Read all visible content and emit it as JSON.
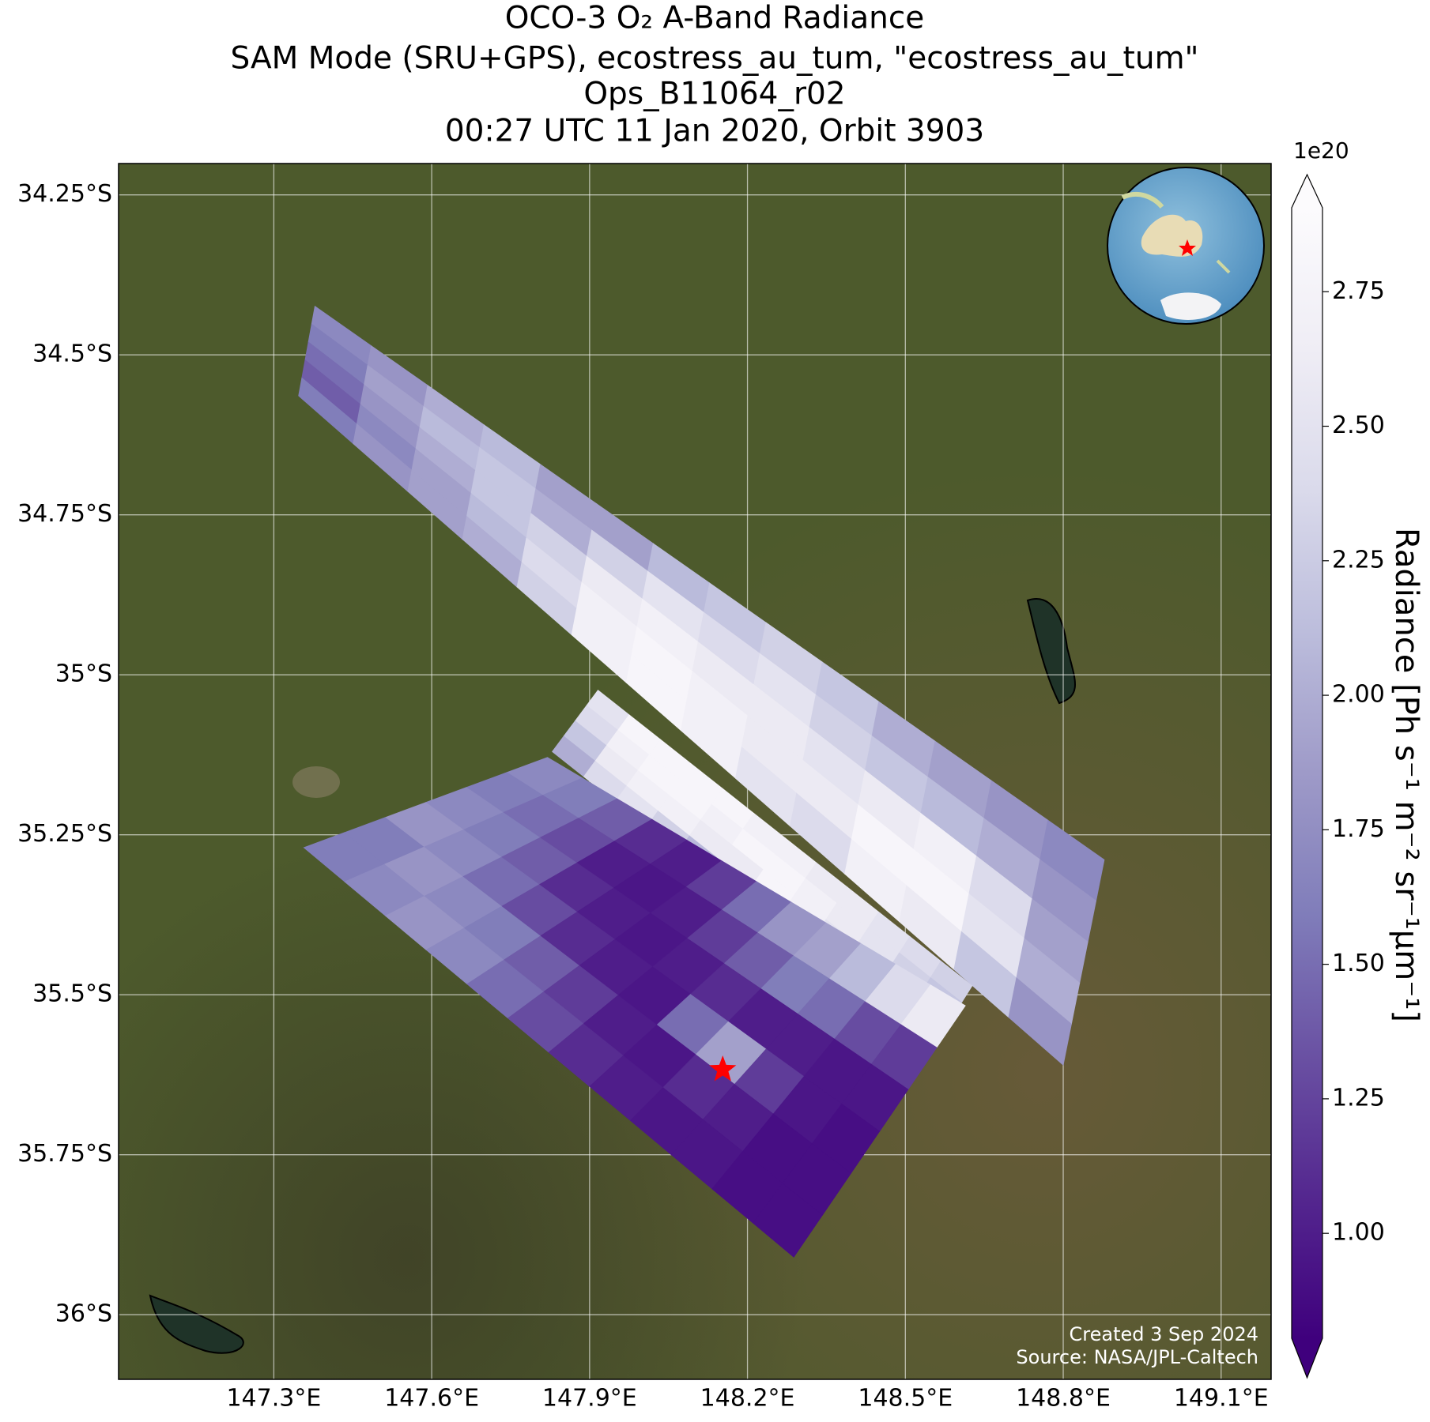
{
  "chart_data": {
    "type": "swath_map",
    "title": [
      "OCO-3 O₂ A-Band Radiance",
      "SAM Mode (SRU+GPS), ecostress_au_tum, \"ecostress_au_tum\"",
      "Ops_B11064_r02",
      "00:27 UTC 11 Jan 2020, Orbit 3903"
    ],
    "xlim": [
      147.005,
      149.195
    ],
    "ylim": [
      -36.101,
      -34.201
    ],
    "xticks": [
      {
        "value": 147.3,
        "label": "147.3°E"
      },
      {
        "value": 147.6,
        "label": "147.6°E"
      },
      {
        "value": 147.9,
        "label": "147.9°E"
      },
      {
        "value": 148.2,
        "label": "148.2°E"
      },
      {
        "value": 148.5,
        "label": "148.5°E"
      },
      {
        "value": 148.8,
        "label": "148.8°E"
      },
      {
        "value": 149.1,
        "label": "149.1°E"
      }
    ],
    "yticks": [
      {
        "value": -34.25,
        "label": "34.25°S"
      },
      {
        "value": -34.5,
        "label": "34.5°S"
      },
      {
        "value": -34.75,
        "label": "34.75°S"
      },
      {
        "value": -35,
        "label": "35°S"
      },
      {
        "value": -35.25,
        "label": "35.25°S"
      },
      {
        "value": -35.5,
        "label": "35.5°S"
      },
      {
        "value": -35.75,
        "label": "35.75°S"
      },
      {
        "value": -36,
        "label": "36°S"
      }
    ],
    "grid": true,
    "colorbar": {
      "label": "Radiance [Ph s⁻¹ m⁻² sr⁻¹μm⁻¹]",
      "offset_label": "1e20",
      "lim": [
        0.805,
        2.906
      ],
      "ticks": [
        {
          "value": 1,
          "label": "1.00"
        },
        1.25,
        {
          "value": 1.5,
          "label": "1.50"
        },
        1.75,
        {
          "value": 2,
          "label": "2.00"
        },
        2.25,
        {
          "value": 2.5,
          "label": "2.50"
        },
        2.75
      ],
      "colors": [
        "#3f007d",
        "#54278f",
        "#6a51a3",
        "#807dba",
        "#9e9ac8",
        "#bcbddc",
        "#dadaeb",
        "#efedf5",
        "#fcfbfd"
      ]
    },
    "swaths": [
      {
        "corners": {
          "lon": [
            147.378,
            148.878,
            148.8,
            147.347
          ],
          "lat": [
            -34.424,
            -35.289,
            -35.61,
            -34.564
          ]
        },
        "values": [
          [
            1.7,
            1.8,
            2.0,
            2.1,
            1.9,
            1.9,
            2.1,
            2.2,
            2.3,
            2.2,
            2.0,
            1.9,
            1.8,
            1.7
          ],
          [
            1.6,
            1.9,
            2.1,
            2.2,
            2.0,
            2.3,
            2.5,
            2.4,
            2.5,
            2.3,
            2.2,
            2.1,
            2.0,
            1.8
          ],
          [
            1.5,
            1.8,
            2.0,
            2.2,
            2.3,
            2.6,
            2.7,
            2.6,
            2.6,
            2.5,
            2.6,
            2.7,
            2.4,
            1.9
          ],
          [
            1.4,
            1.7,
            1.9,
            2.1,
            2.4,
            2.7,
            2.8,
            2.7,
            2.6,
            2.6,
            2.8,
            2.8,
            2.5,
            2.0
          ],
          [
            1.6,
            1.8,
            1.9,
            2.0,
            2.3,
            2.7,
            2.8,
            2.7,
            2.5,
            2.4,
            2.7,
            2.6,
            2.2,
            1.8
          ]
        ]
      },
      {
        "corners": {
          "lon": [
            147.916,
            148.627,
            148.548,
            147.829
          ],
          "lat": [
            -35.024,
            -35.486,
            -35.589,
            -35.12
          ]
        },
        "values": [
          [
            2.5,
            2.8,
            2.8,
            2.8,
            2.8,
            2.7,
            2.7,
            2.6,
            2.6,
            2.5,
            2.4,
            2.3
          ],
          [
            2.4,
            2.7,
            2.8,
            2.8,
            2.7,
            2.8,
            2.8,
            2.7,
            2.6,
            2.5,
            2.3,
            2.2
          ],
          [
            2.2,
            2.6,
            2.7,
            2.7,
            2.6,
            2.6,
            2.8,
            2.7,
            2.5,
            2.4,
            2.7,
            2.2
          ],
          [
            2.0,
            2.4,
            2.5,
            2.3,
            2.1,
            2.0,
            2.2,
            2.3,
            2.4,
            2.3,
            2.7,
            2.0
          ]
        ]
      },
      {
        "corners": {
          "lon": [
            147.82,
            148.614,
            148.288,
            147.357
          ],
          "lat": [
            -35.129,
            -35.517,
            -35.91,
            -35.27
          ]
        },
        "values": [
          [
            1.7,
            1.6,
            1.4,
            1.1,
            1.0,
            1.2,
            1.5,
            1.8,
            1.9,
            2.1,
            2.4,
            2.6
          ],
          [
            1.6,
            1.5,
            1.3,
            1.0,
            0.95,
            1.0,
            1.2,
            1.4,
            1.6,
            1.5,
            1.3,
            1.2
          ],
          [
            1.7,
            1.6,
            1.4,
            1.1,
            1.0,
            0.95,
            1.0,
            1.1,
            1.0,
            1.0,
            0.95,
            0.95
          ],
          [
            1.8,
            1.7,
            1.5,
            1.3,
            1.1,
            1.0,
            0.95,
            1.5,
            1.9,
            1.2,
            0.95,
            0.9
          ],
          [
            1.6,
            1.8,
            1.7,
            1.6,
            1.4,
            1.2,
            1.0,
            0.95,
            1.1,
            1.0,
            0.9,
            0.9
          ],
          [
            1.6,
            1.7,
            1.8,
            1.7,
            1.5,
            1.3,
            1.1,
            1.0,
            0.95,
            0.95,
            0.9,
            0.9
          ]
        ]
      }
    ],
    "target": {
      "lon": 148.153,
      "lat": -35.617,
      "color": "#ff0000"
    },
    "credits": [
      "Created 3 Sep 2024",
      "Source: NASA/JPL-Caltech"
    ]
  }
}
